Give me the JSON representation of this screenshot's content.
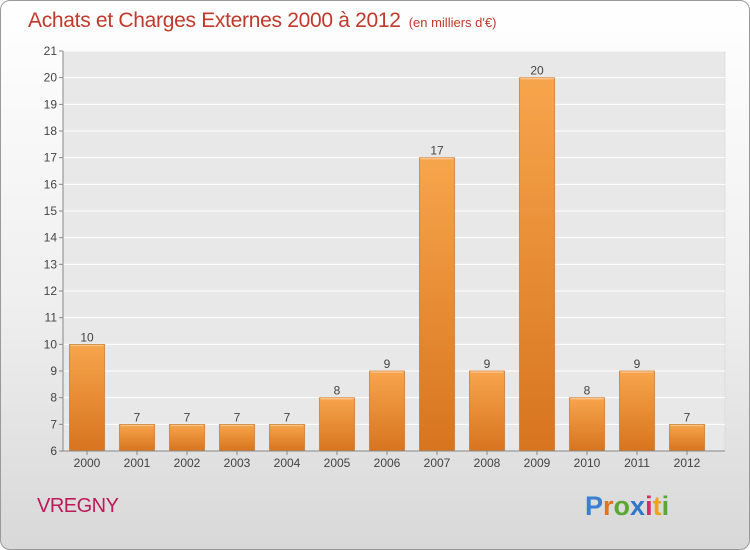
{
  "header": {
    "title": "Achats et Charges Externes 2000 à 2012",
    "subtitle": "(en milliers d'€)"
  },
  "footer": {
    "commune": "VREGNY",
    "logo": {
      "text": "Proxiti",
      "letter_colors": [
        "#3a7fd0",
        "#e5731c",
        "#5aa832",
        "#2f78c8",
        "#d82a6b",
        "#f0a21e",
        "#5aa832"
      ]
    }
  },
  "colors": {
    "title": "#c0392b",
    "commune": "#c0185a",
    "bar_light": "#f7a54c",
    "bar_dark": "#d7741f",
    "axis": "#888888",
    "grid": "#ffffff"
  },
  "chart_data": {
    "type": "bar",
    "title": "Achats et Charges Externes 2000 à 2012",
    "subtitle": "(en milliers d'€)",
    "categories": [
      "2000",
      "2001",
      "2002",
      "2003",
      "2004",
      "2005",
      "2006",
      "2007",
      "2008",
      "2009",
      "2010",
      "2011",
      "2012"
    ],
    "values": [
      10,
      7,
      7,
      7,
      7,
      8,
      9,
      17,
      9,
      20,
      8,
      9,
      7
    ],
    "data_labels": [
      "10",
      "7",
      "7",
      "7",
      "7",
      "8",
      "9",
      "17",
      "9",
      "20",
      "8",
      "9",
      "7"
    ],
    "ylim": [
      6,
      21
    ],
    "yticks": [
      "6",
      "7",
      "8",
      "9",
      "10",
      "11",
      "12",
      "13",
      "14",
      "15",
      "16",
      "17",
      "18",
      "19",
      "20",
      "21"
    ],
    "xlabel": "",
    "ylabel": "",
    "grid": true
  }
}
